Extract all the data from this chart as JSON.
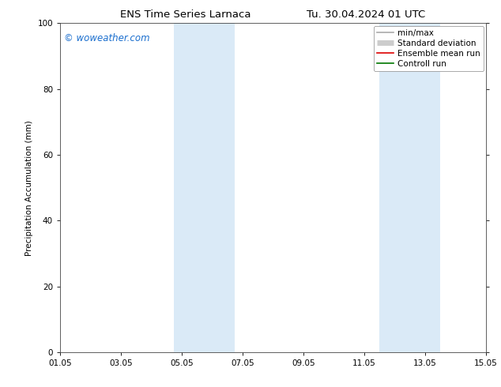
{
  "title_left": "ENS Time Series Larnaca",
  "title_right": "Tu. 30.04.2024 01 UTC",
  "ylabel": "Precipitation Accumulation (mm)",
  "ylim": [
    0,
    100
  ],
  "yticks": [
    0,
    20,
    40,
    60,
    80,
    100
  ],
  "xmin_num": 0,
  "xmax_num": 14,
  "xtick_labels": [
    "01.05",
    "03.05",
    "05.05",
    "07.05",
    "09.05",
    "11.05",
    "13.05",
    "15.05"
  ],
  "xtick_positions": [
    0,
    2,
    4,
    6,
    8,
    10,
    12,
    14
  ],
  "shaded_bands": [
    {
      "xstart": 3.75,
      "xend": 5.75
    },
    {
      "xstart": 10.5,
      "xend": 12.5
    }
  ],
  "shaded_color": "#daeaf7",
  "watermark_text": "© woweather.com",
  "watermark_color": "#1a6ece",
  "legend_items": [
    {
      "label": "min/max",
      "color": "#aaaaaa",
      "lw": 1.2,
      "style": "solid"
    },
    {
      "label": "Standard deviation",
      "color": "#cccccc",
      "lw": 5,
      "style": "solid"
    },
    {
      "label": "Ensemble mean run",
      "color": "#dd0000",
      "lw": 1.2,
      "style": "solid"
    },
    {
      "label": "Controll run",
      "color": "#007700",
      "lw": 1.2,
      "style": "solid"
    }
  ],
  "bg_color": "#ffffff",
  "title_fontsize": 9.5,
  "axis_fontsize": 7.5,
  "watermark_fontsize": 8.5,
  "legend_fontsize": 7.5
}
